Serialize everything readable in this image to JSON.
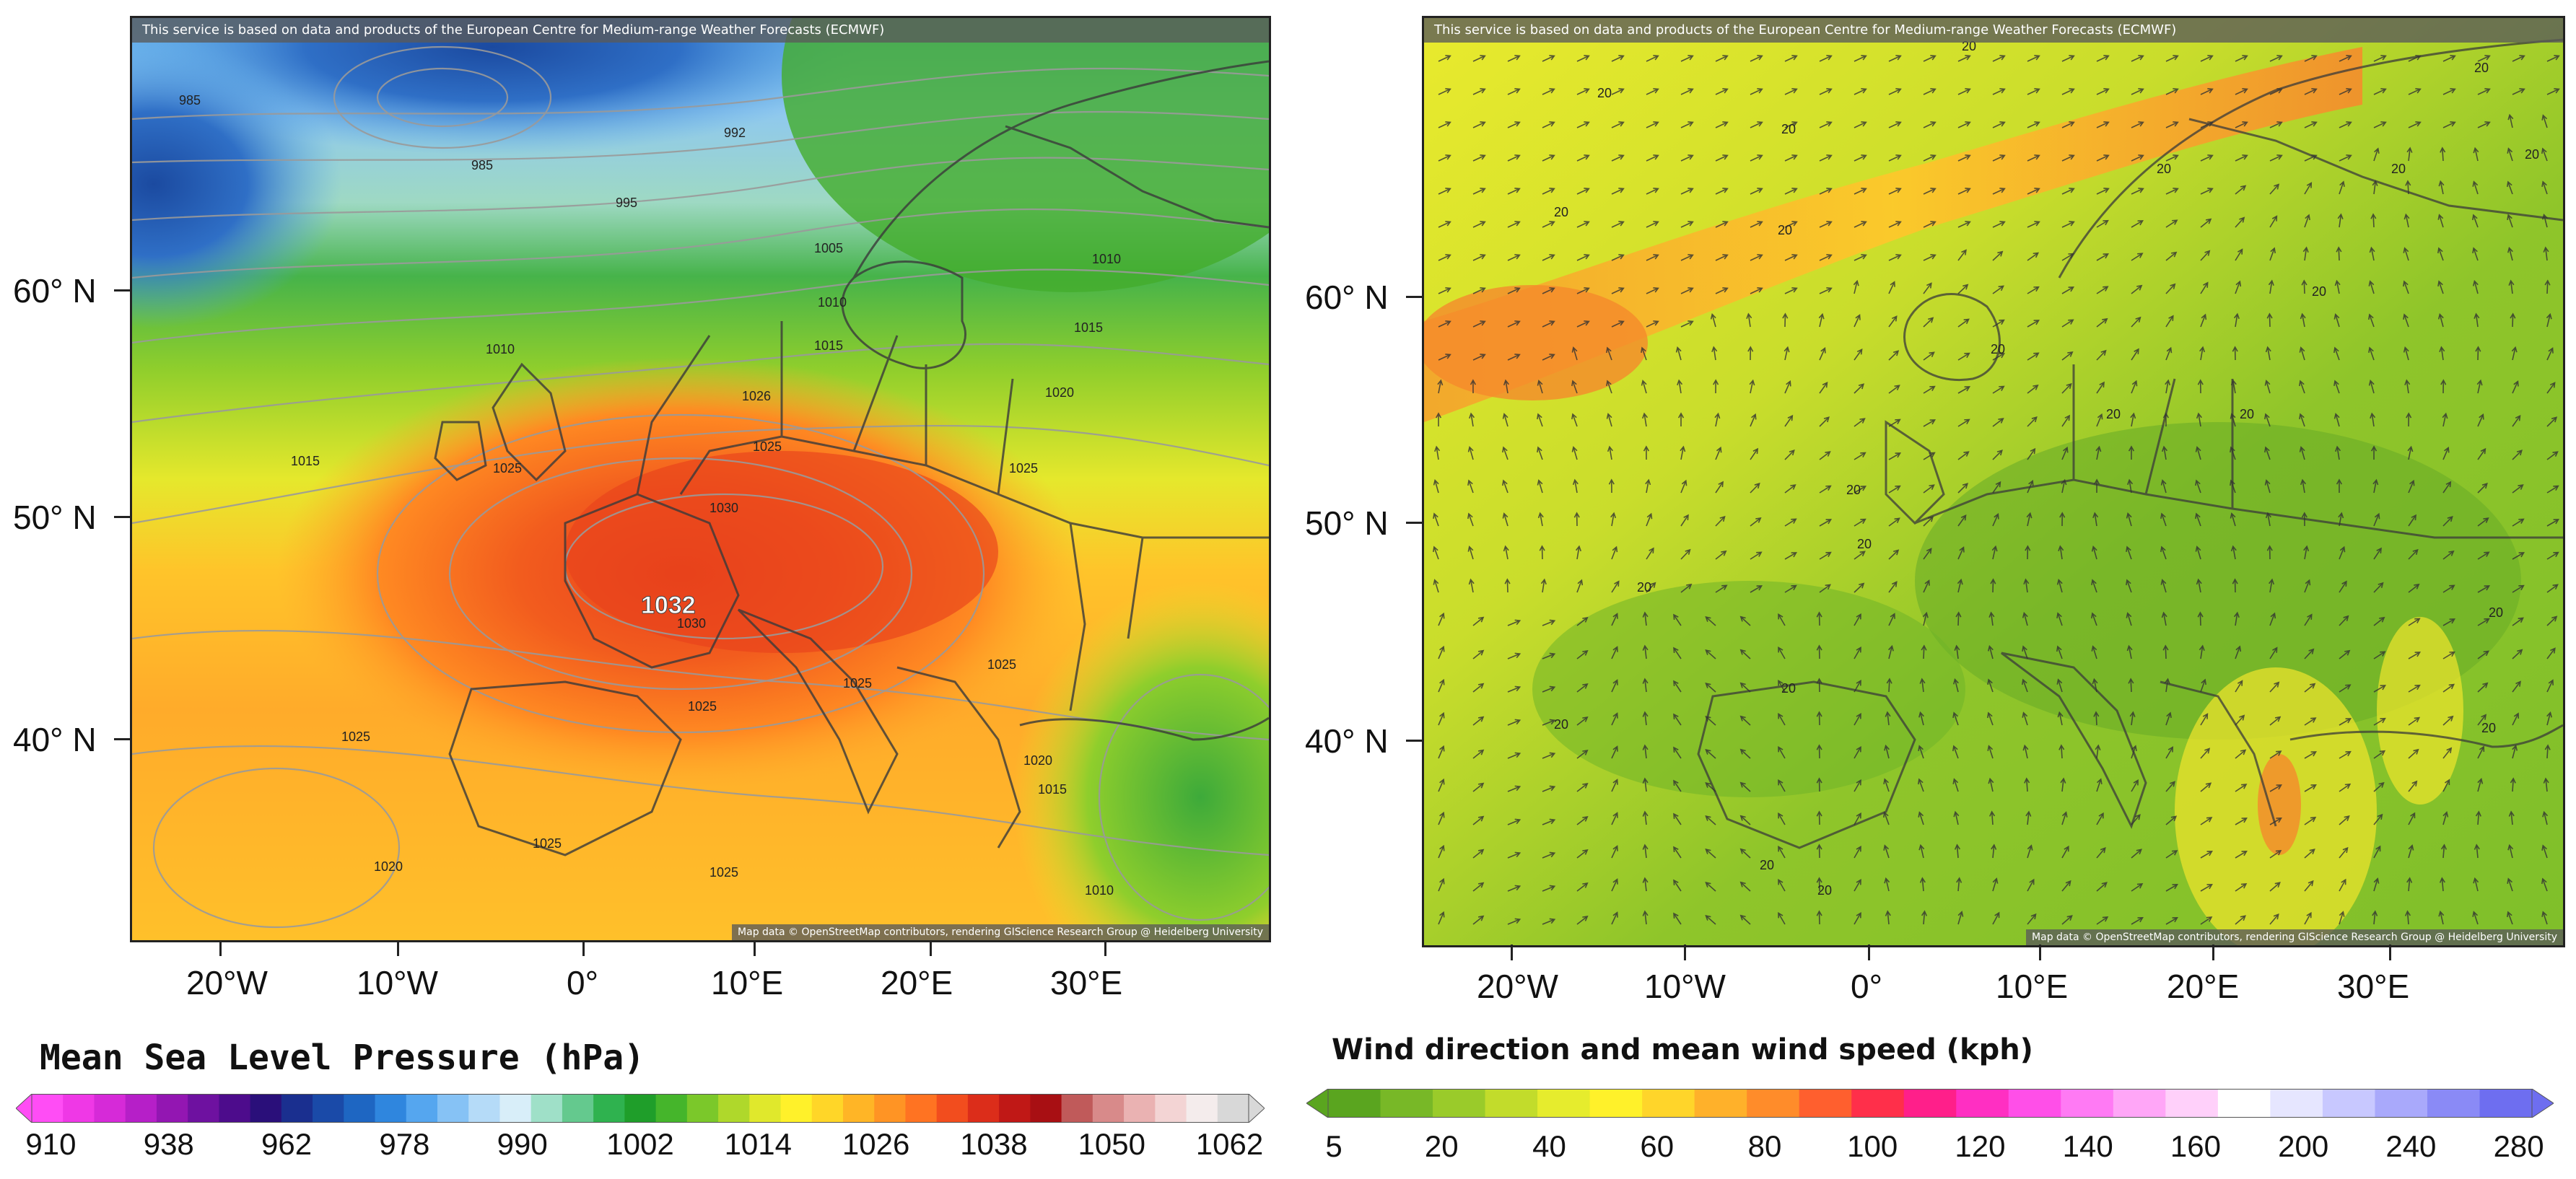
{
  "attribution_top": "This service is based on data and products of the European Centre for Medium-range Weather Forecasts (ECMWF)",
  "attribution_bottom": "Map data © OpenStreetMap contributors, rendering GIScience Research Group @ Heidelberg University",
  "axes": {
    "lat_labels": [
      "60° N",
      "50° N",
      "40° N"
    ],
    "lon_labels": [
      "20°W",
      "10°W",
      "0°",
      "10°E",
      "20°E",
      "30°E"
    ]
  },
  "left_map": {
    "title": "Mean Sea Level Pressure (hPa)",
    "center_high_label": "1032",
    "isobar_labels": [
      "985",
      "992",
      "985",
      "995",
      "1005",
      "1010",
      "1010",
      "1015",
      "1010",
      "1015",
      "1026",
      "1025",
      "1020",
      "1025",
      "1015",
      "1030",
      "1030",
      "1025",
      "1025",
      "1025",
      "1025",
      "1020",
      "1015",
      "1025",
      "1020",
      "1025",
      "1025",
      "1010"
    ],
    "colorbar_labels": [
      "910",
      "938",
      "962",
      "978",
      "990",
      "1002",
      "1014",
      "1026",
      "1038",
      "1050",
      "1062"
    ],
    "colorbar_colors": [
      "#ff4df5",
      "#ef38e6",
      "#d62ad8",
      "#b61fc8",
      "#9316b2",
      "#6e11a0",
      "#4d0c8c",
      "#2a0f7a",
      "#1a2f8f",
      "#1a4aa8",
      "#1e66c2",
      "#2f86de",
      "#55a6ef",
      "#86c2f5",
      "#b5dbf8",
      "#d8eef9",
      "#9fe0c8",
      "#64c98e",
      "#2fb24f",
      "#1f9e2a",
      "#45b52b",
      "#7bc82a",
      "#afd82b",
      "#e0e82c",
      "#fff12a",
      "#ffd628",
      "#ffb526",
      "#ff9424",
      "#ff7322",
      "#f24d1e",
      "#dc2d1a",
      "#c01816",
      "#a80f13",
      "#c05a5a",
      "#d88a8a",
      "#eab2b2",
      "#f3d4d4",
      "#f4ecec",
      "#d8d8d8"
    ]
  },
  "right_map": {
    "title": "Wind direction and mean wind speed (kph)",
    "speed_labels": [
      "20",
      "20",
      "20",
      "20",
      "20",
      "20",
      "20",
      "20",
      "20",
      "20",
      "20",
      "20",
      "20",
      "20",
      "20",
      "20",
      "20",
      "20",
      "20",
      "20",
      "20",
      "20"
    ],
    "colorbar_labels": [
      "5",
      "20",
      "40",
      "60",
      "80",
      "100",
      "120",
      "140",
      "160",
      "200",
      "240",
      "280"
    ],
    "colorbar_colors": [
      "#5aa51f",
      "#78b827",
      "#9acb2a",
      "#c2dc2b",
      "#e6ec2d",
      "#fff12a",
      "#ffd52a",
      "#ffb12a",
      "#ff8c2a",
      "#ff5f2e",
      "#ff2f4a",
      "#ff1f8a",
      "#ff2fc2",
      "#ff4fe8",
      "#ff7af4",
      "#ffa6f7",
      "#ffd0fa",
      "#ffffff",
      "#e6e6ff",
      "#c8c8ff",
      "#a9a9fb",
      "#8a8af6",
      "#6e6ef0"
    ]
  }
}
